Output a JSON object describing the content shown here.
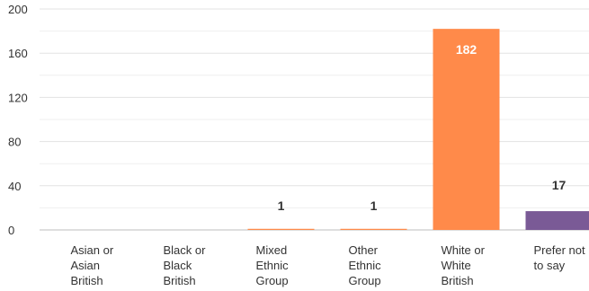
{
  "chart_data": {
    "type": "bar",
    "categories": [
      [
        "Asian or",
        "Asian",
        "British"
      ],
      [
        "Black or",
        "Black",
        "British"
      ],
      [
        "Mixed",
        "Ethnic",
        "Group"
      ],
      [
        "Other",
        "Ethnic",
        "Group"
      ],
      [
        "White or",
        "White",
        "British"
      ],
      [
        "Prefer not",
        "to say"
      ]
    ],
    "values": [
      0,
      0,
      1,
      1,
      182,
      17
    ],
    "data_labels": [
      "",
      "",
      "1",
      "1",
      "182",
      "17"
    ],
    "colors": [
      "#FF8A4A",
      "#FF8A4A",
      "#FF8A4A",
      "#FF8A4A",
      "#FF8A4A",
      "#7A5A96"
    ],
    "ylim": [
      0,
      200
    ],
    "yticks": [
      0,
      40,
      80,
      120,
      160,
      200
    ],
    "grid": true,
    "title": "",
    "xlabel": "",
    "ylabel": ""
  }
}
